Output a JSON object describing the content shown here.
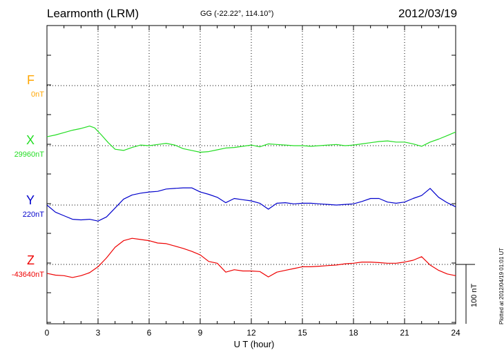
{
  "header": {
    "station": "Learmonth (LRM)",
    "coords": "GG (-22.22°, 114.10°)",
    "date": "2012/03/19"
  },
  "side_note": "Plotted at 2012/04/19 01:01 UT",
  "scale_label": "100 nT",
  "components": [
    {
      "letter": "F",
      "base": "0nT",
      "color": "#ffa500"
    },
    {
      "letter": "X",
      "base": "29960nT",
      "color": "#22dd22"
    },
    {
      "letter": "Y",
      "base": "220nT",
      "color": "#0000cc"
    },
    {
      "letter": "Z",
      "base": "-43640nT",
      "color": "#ee0000"
    }
  ],
  "chart_data": {
    "type": "line",
    "xlabel": "U T (hour)",
    "xlim": [
      0,
      24
    ],
    "xticks": [
      0,
      3,
      6,
      9,
      12,
      15,
      18,
      21,
      24
    ],
    "scale_bar_nT": 100,
    "series": [
      {
        "name": "X",
        "baseline_nT": 29960,
        "x": [
          0,
          0.5,
          1,
          1.5,
          2,
          2.5,
          2.8,
          3.2,
          3.6,
          4,
          4.5,
          5,
          5.5,
          6,
          6.5,
          7,
          7.5,
          8,
          8.5,
          9,
          9.5,
          10,
          10.5,
          11,
          11.5,
          12,
          12.5,
          13,
          13.5,
          14,
          14.5,
          15,
          15.5,
          16,
          16.5,
          17,
          17.5,
          18,
          18.5,
          19,
          19.5,
          20,
          20.5,
          21,
          21.5,
          22,
          22.5,
          23,
          23.5,
          24
        ],
        "y": [
          15,
          18,
          22,
          26,
          29,
          33,
          30,
          18,
          5,
          -6,
          -8,
          -3,
          1,
          0,
          2,
          4,
          1,
          -5,
          -8,
          -11,
          -10,
          -7,
          -4,
          -3,
          -1,
          1,
          -2,
          3,
          2,
          1,
          0,
          0,
          -1,
          0,
          1,
          2,
          0,
          1,
          3,
          5,
          7,
          8,
          6,
          6,
          3,
          -1,
          6,
          11,
          17,
          23
        ]
      },
      {
        "name": "Y",
        "baseline_nT": 220,
        "x": [
          0,
          0.5,
          1,
          1.5,
          2,
          2.5,
          3,
          3.5,
          4,
          4.5,
          5,
          5.5,
          6,
          6.5,
          7,
          7.5,
          8,
          8.5,
          9,
          9.5,
          10,
          10.5,
          11,
          11.5,
          12,
          12.5,
          13,
          13.5,
          14,
          14.5,
          15,
          15.5,
          16,
          16.5,
          17,
          17.5,
          18,
          18.5,
          19,
          19.5,
          20,
          20.5,
          21,
          21.5,
          22,
          22.5,
          23,
          23.5,
          24
        ],
        "y": [
          0,
          -12,
          -18,
          -24,
          -25,
          -24,
          -27,
          -20,
          -5,
          10,
          17,
          20,
          22,
          23,
          27,
          28,
          29,
          29,
          22,
          18,
          13,
          4,
          11,
          9,
          7,
          3,
          -7,
          3,
          4,
          2,
          3,
          3,
          2,
          1,
          0,
          1,
          2,
          6,
          11,
          11,
          5,
          3,
          5,
          11,
          16,
          28,
          13,
          4,
          -3
        ]
      },
      {
        "name": "Z",
        "baseline_nT": -43640,
        "x": [
          0,
          0.5,
          1,
          1.5,
          2,
          2.5,
          3,
          3.5,
          4,
          4.5,
          5,
          5.5,
          6,
          6.5,
          7,
          7.5,
          8,
          8.5,
          9,
          9.5,
          10,
          10.5,
          11,
          11.5,
          12,
          12.5,
          13,
          13.5,
          14,
          14.5,
          15,
          15.5,
          16,
          16.5,
          17,
          17.5,
          18,
          18.5,
          19,
          19.5,
          20,
          20.5,
          21,
          21.5,
          22,
          22.5,
          23,
          23.5,
          24
        ],
        "y": [
          -15,
          -18,
          -19,
          -22,
          -19,
          -14,
          -4,
          11,
          29,
          40,
          44,
          42,
          40,
          36,
          35,
          31,
          27,
          22,
          16,
          5,
          2,
          -13,
          -9,
          -11,
          -11,
          -12,
          -21,
          -13,
          -10,
          -7,
          -4,
          -4,
          -3,
          -2,
          -1,
          1,
          2,
          4,
          4,
          3,
          2,
          2,
          4,
          7,
          13,
          -1,
          -10,
          -16,
          -19
        ]
      }
    ]
  }
}
